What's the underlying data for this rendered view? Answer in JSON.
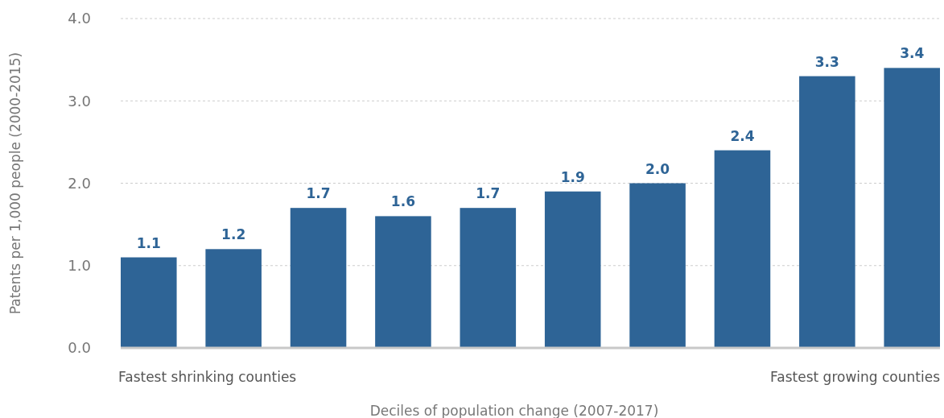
{
  "chart_data": {
    "type": "bar",
    "xlabel": "Deciles of population change (2007-2017)",
    "ylabel": "Patents per 1,000 people (2000-2015)",
    "categories": [
      null,
      null,
      null,
      null,
      null,
      null,
      null,
      null,
      null,
      null
    ],
    "values": [
      1.1,
      1.2,
      1.7,
      1.6,
      1.7,
      1.9,
      2.0,
      2.4,
      3.3,
      3.4
    ],
    "value_labels": [
      "1.1",
      "1.2",
      "1.7",
      "1.6",
      "1.7",
      "1.9",
      "2.0",
      "2.4",
      "3.3",
      "3.4"
    ],
    "color": "#2e6496",
    "ylim": [
      0,
      4
    ],
    "yticks": [
      {
        "value": 0,
        "label": "0.0"
      },
      {
        "value": 1,
        "label": "1.0"
      },
      {
        "value": 2,
        "label": "2.0"
      },
      {
        "value": 3,
        "label": "3.0"
      },
      {
        "value": 4,
        "label": "4.0"
      }
    ],
    "grid": "y",
    "annotations": [
      "Fastest shrinking counties",
      "Fastest growing counties"
    ]
  }
}
